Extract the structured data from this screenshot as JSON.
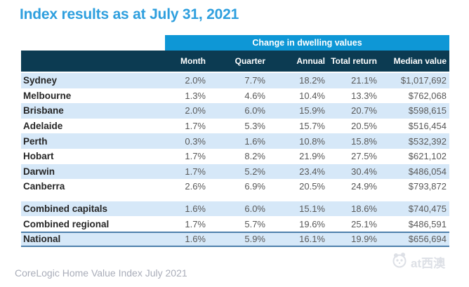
{
  "title": "Index results as at July 31, 2021",
  "footer": {
    "source": "CoreLogic Home Value Index July 2021"
  },
  "watermark": {
    "text": "at西澳",
    "icon": "panda-icon"
  },
  "colors": {
    "title_blue": "#2e9fde",
    "group_header_blue": "#0e97d6",
    "column_header_navy": "#0c3b52",
    "row_stripe_blue": "#d6e8f8",
    "national_border_blue": "#4e80ac",
    "footer_gray": "#a9adb9"
  },
  "chart_data": {
    "type": "table",
    "title": "Index results as at July 31, 2021",
    "group_header": "Change in dwelling values",
    "columns": [
      "Month",
      "Quarter",
      "Annual",
      "Total return",
      "Median value"
    ],
    "row_groups": [
      {
        "name": "cities",
        "rows": [
          {
            "label": "Sydney",
            "values": [
              "2.0%",
              "7.7%",
              "18.2%",
              "21.1%",
              "$1,017,692"
            ]
          },
          {
            "label": "Melbourne",
            "values": [
              "1.3%",
              "4.6%",
              "10.4%",
              "13.3%",
              "$762,068"
            ]
          },
          {
            "label": "Brisbane",
            "values": [
              "2.0%",
              "6.0%",
              "15.9%",
              "20.7%",
              "$598,615"
            ]
          },
          {
            "label": "Adelaide",
            "values": [
              "1.7%",
              "5.3%",
              "15.7%",
              "20.5%",
              "$516,454"
            ]
          },
          {
            "label": "Perth",
            "values": [
              "0.3%",
              "1.6%",
              "10.8%",
              "15.8%",
              "$532,392"
            ]
          },
          {
            "label": "Hobart",
            "values": [
              "1.7%",
              "8.2%",
              "21.9%",
              "27.5%",
              "$621,102"
            ]
          },
          {
            "label": "Darwin",
            "values": [
              "1.7%",
              "5.2%",
              "23.4%",
              "30.4%",
              "$486,054"
            ]
          },
          {
            "label": "Canberra",
            "values": [
              "2.6%",
              "6.9%",
              "20.5%",
              "24.9%",
              "$793,872"
            ]
          }
        ]
      },
      {
        "name": "combined",
        "rows": [
          {
            "label": "Combined capitals",
            "values": [
              "1.6%",
              "6.0%",
              "15.1%",
              "18.6%",
              "$740,475"
            ]
          },
          {
            "label": "Combined regional",
            "values": [
              "1.7%",
              "5.7%",
              "19.6%",
              "25.1%",
              "$486,591"
            ]
          }
        ]
      },
      {
        "name": "national",
        "rows": [
          {
            "label": "National",
            "values": [
              "1.6%",
              "5.9%",
              "16.1%",
              "19.9%",
              "$656,694"
            ]
          }
        ]
      }
    ]
  }
}
